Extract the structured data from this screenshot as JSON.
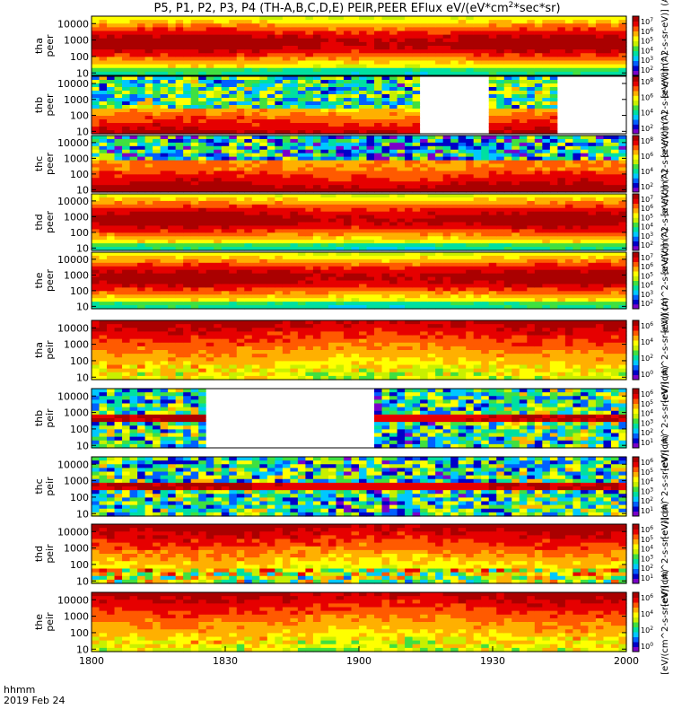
{
  "title": "P5, P1, P2, P3, P4 (TH-A,B,C,D,E) PEIR,PEER EFlux eV/(eV*cm^2*sec*sr)",
  "footer": {
    "time_label": "hhmm",
    "date_label": "2019 Feb 24"
  },
  "chart_data": {
    "type": "heatmap",
    "x_axis": {
      "ticks": [
        "1800",
        "1830",
        "1900",
        "1930",
        "2000"
      ],
      "range_minutes": [
        0,
        120
      ]
    },
    "y_axis": {
      "scale": "log",
      "ticks": [
        "10",
        "100",
        "1000",
        "10000"
      ],
      "unit": "eV"
    },
    "colormap": [
      "#ffffff",
      "#7a00c8",
      "#0000c8",
      "#0060ff",
      "#00c8ff",
      "#00e0a0",
      "#40e040",
      "#c8f000",
      "#ffff00",
      "#ffb000",
      "#ff5a00",
      "#e60000",
      "#aa0000"
    ],
    "panels": [
      {
        "probe": "tha",
        "species": "peer",
        "label_top": "tha",
        "label_bottom": "peer",
        "profile": "electron_broad",
        "colorbar_label": "[eV/(cm^2-s-sr-eV)] (A)",
        "colorbar_ticks": [
          "10^7",
          "10^6",
          "10^5",
          "10^4",
          "10^3",
          "10^2"
        ],
        "gaps": []
      },
      {
        "probe": "thb",
        "species": "peer",
        "label_top": "thb",
        "label_bottom": "peer",
        "profile": "electron_low_noise",
        "colorbar_label": "[eV/(cm^2-s-sr-eV)] (A)",
        "colorbar_ticks": [
          "10^8",
          "10^6",
          "10^4",
          "10^2"
        ],
        "gaps": [
          [
            74,
            90
          ],
          [
            105,
            120
          ]
        ]
      },
      {
        "probe": "thc",
        "species": "peer",
        "label_top": "thc",
        "label_bottom": "peer",
        "profile": "electron_band_noise",
        "colorbar_label": "[eV/(cm^2-s-sr-eV)] (A)",
        "colorbar_ticks": [
          "10^8",
          "10^6",
          "10^4",
          "10^2"
        ],
        "gaps": []
      },
      {
        "probe": "thd",
        "species": "peer",
        "label_top": "thd",
        "label_bottom": "peer",
        "profile": "electron_broad",
        "colorbar_label": "[eV/(cm^2-s-sr-eV)] (A)",
        "colorbar_ticks": [
          "10^7",
          "10^6",
          "10^5",
          "10^4",
          "10^3",
          "10^2"
        ],
        "gaps": []
      },
      {
        "probe": "the",
        "species": "peer",
        "label_top": "the",
        "label_bottom": "peer",
        "profile": "electron_broad",
        "colorbar_label": "[eV/(cm^2-s-sr-eV)] (A)",
        "colorbar_ticks": [
          "10^7",
          "10^6",
          "10^5",
          "10^4",
          "10^3",
          "10^2"
        ],
        "gaps": []
      },
      {
        "probe": "tha",
        "species": "peir",
        "label_top": "tha",
        "label_bottom": "peir",
        "profile": "ion_high",
        "colorbar_label": "[eV/(cm^2-s-sr-eV)] (A)",
        "colorbar_ticks": [
          "10^6",
          "10^4",
          "10^2",
          "10^0"
        ],
        "gaps": []
      },
      {
        "probe": "thb",
        "species": "peir",
        "label_top": "thb",
        "label_bottom": "peir",
        "profile": "ion_noise_band",
        "colorbar_label": "[eV/(cm^2-s-sr-eV)] (A)",
        "colorbar_ticks": [
          "10^6",
          "10^5",
          "10^4",
          "10^3",
          "10^2",
          "10^1"
        ],
        "gaps": [
          [
            26,
            63
          ]
        ]
      },
      {
        "probe": "thc",
        "species": "peir",
        "label_top": "thc",
        "label_bottom": "peir",
        "profile": "ion_noise_band",
        "colorbar_label": "[eV/(cm^2-s-sr-eV)] (A)",
        "colorbar_ticks": [
          "10^6",
          "10^5",
          "10^4",
          "10^3",
          "10^2",
          "10^1"
        ],
        "gaps": []
      },
      {
        "probe": "thd",
        "species": "peir",
        "label_top": "thd",
        "label_bottom": "peir",
        "profile": "ion_high_noise",
        "colorbar_label": "[eV/(cm^2-s-sr-eV)] (A)",
        "colorbar_ticks": [
          "10^6",
          "10^5",
          "10^4",
          "10^3",
          "10^2",
          "10^1"
        ],
        "gaps": []
      },
      {
        "probe": "the",
        "species": "peir",
        "label_top": "the",
        "label_bottom": "peir",
        "profile": "ion_high",
        "colorbar_label": "[eV/(cm^2-s-sr-eV)] (A)",
        "colorbar_ticks": [
          "10^6",
          "10^4",
          "10^2",
          "10^0"
        ],
        "gaps": []
      }
    ]
  }
}
